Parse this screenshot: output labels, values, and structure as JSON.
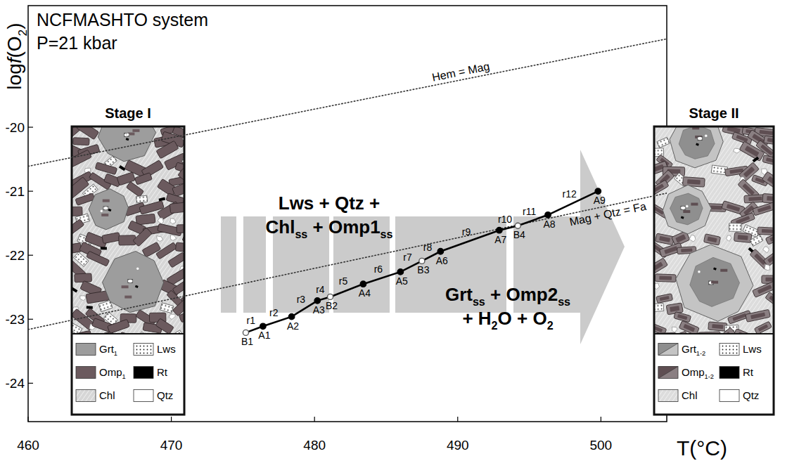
{
  "chart_data": {
    "type": "line",
    "notes": [
      "NCFMASHTO system",
      "P=21 kbar"
    ],
    "x_label": "T(°C)",
    "y_label": [
      "log",
      {
        "italic": "f"
      },
      "(O",
      {
        "sub": "2"
      },
      ")"
    ],
    "xlim": [
      460,
      504.6
    ],
    "xticks": [
      460,
      470,
      480,
      490,
      500
    ],
    "ylim": [
      -24.6,
      -18.1
    ],
    "yticks": [
      -24,
      -23,
      -22,
      -21,
      -20
    ],
    "series": [
      {
        "name": "Hem = Mag",
        "type": "line",
        "line_style": "dotted",
        "color": "#333333",
        "x": [
          460,
          504.6
        ],
        "values": [
          -20.61,
          -18.62
        ]
      },
      {
        "name": "Mag + Qtz = Fa",
        "type": "line",
        "line_style": "dotted",
        "color": "#333333",
        "x": [
          460,
          504.6
        ],
        "values": [
          -23.16,
          -21.03
        ]
      },
      {
        "type": "line",
        "line_style": "solid",
        "marker": "circle",
        "color": "#000000",
        "x": [
          475.2,
          476.4,
          478.4,
          480.2,
          481.1,
          483.4,
          486.0,
          487.5,
          488.8,
          492.9,
          494.2,
          496.3,
          499.8
        ],
        "values": [
          -23.21,
          -23.11,
          -22.96,
          -22.71,
          -22.65,
          -22.45,
          -22.26,
          -22.09,
          -21.94,
          -21.61,
          -21.54,
          -21.37,
          -21.0
        ],
        "point_labels": [
          "B1",
          "A1",
          "A2",
          "A3",
          "B2",
          "A4",
          "A5",
          "B3",
          "A6",
          "A7",
          "B4",
          "A8",
          "A9"
        ],
        "segment_labels": [
          "r1",
          "r2",
          "r3",
          "r4",
          "r5",
          "r6",
          "r7",
          "r8",
          "r9",
          "r10",
          "r11",
          "r12"
        ]
      }
    ],
    "reactions": [
      [
        [
          "Lws + Qtz +"
        ],
        [
          "Chl",
          {
            "sub": "ss"
          },
          " + Omp1",
          {
            "sub": "ss"
          }
        ]
      ],
      [
        [
          "Grt",
          {
            "sub": "ss"
          },
          " + Omp2",
          {
            "sub": "ss"
          }
        ],
        [
          "+ H",
          {
            "sub": "2"
          },
          "O + O",
          {
            "sub": "2"
          }
        ]
      ]
    ],
    "insets": [
      {
        "title": "Stage I",
        "legend": [
          {
            "label": [
              "Grt",
              {
                "sub": "1"
              }
            ],
            "color": "#9d9d9d",
            "marker": "solid"
          },
          {
            "label": [
              "Lws"
            ],
            "color": "#ffffff",
            "marker": "dots"
          },
          {
            "label": [
              "Omp",
              {
                "sub": "1"
              }
            ],
            "color": "#6b5a5e",
            "marker": "solid"
          },
          {
            "label": [
              "Rt"
            ],
            "color": "#000000",
            "marker": "solid"
          },
          {
            "label": [
              "Chl"
            ],
            "color": "#d6d6d6",
            "marker": "hatch"
          },
          {
            "label": [
              "Qtz"
            ],
            "color": "#ffffff",
            "marker": "solid"
          }
        ]
      },
      {
        "title": "Stage II",
        "legend": [
          {
            "label": [
              "Grt",
              {
                "sub": "1-2"
              }
            ],
            "colors": [
              "#8f8f8f",
              "#c4c4c4"
            ],
            "marker": "split"
          },
          {
            "label": [
              "Lws"
            ],
            "color": "#ffffff",
            "marker": "dots"
          },
          {
            "label": [
              "Omp",
              {
                "sub": "1-2"
              }
            ],
            "colors": [
              "#5e4e52",
              "#8a7f82"
            ],
            "marker": "split"
          },
          {
            "label": [
              "Rt"
            ],
            "color": "#000000",
            "marker": "solid"
          },
          {
            "label": [
              "Chl"
            ],
            "color": "#dcdcdc",
            "marker": "hatch"
          },
          {
            "label": [
              "Qtz"
            ],
            "color": "#ffffff",
            "marker": "solid"
          }
        ]
      }
    ]
  }
}
